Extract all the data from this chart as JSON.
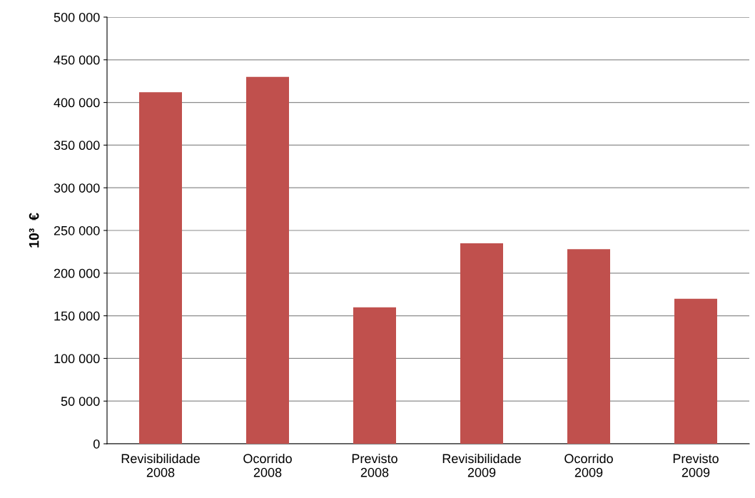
{
  "chart_data": {
    "type": "bar",
    "ylabel": "10³  €",
    "categories": [
      "Revisibilidade\n2008",
      "Ocorrido\n2008",
      "Previsto\n2008",
      "Revisibilidade\n2009",
      "Ocorrido\n2009",
      "Previsto\n2009"
    ],
    "values": [
      412000,
      430000,
      160000,
      235000,
      228000,
      170000
    ],
    "color": "#c0504d",
    "ylim": [
      0,
      500000
    ],
    "yticks": [
      {
        "value": 0,
        "label": "0"
      },
      {
        "value": 50000,
        "label": "50 000"
      },
      {
        "value": 100000,
        "label": "100 000"
      },
      {
        "value": 150000,
        "label": "150 000"
      },
      {
        "value": 200000,
        "label": "200 000"
      },
      {
        "value": 250000,
        "label": "250 000"
      },
      {
        "value": 300000,
        "label": "300 000"
      },
      {
        "value": 350000,
        "label": "350 000"
      },
      {
        "value": 400000,
        "label": "400 000"
      },
      {
        "value": 450000,
        "label": "450 000"
      },
      {
        "value": 500000,
        "label": "500 000"
      }
    ],
    "grid": "y"
  }
}
